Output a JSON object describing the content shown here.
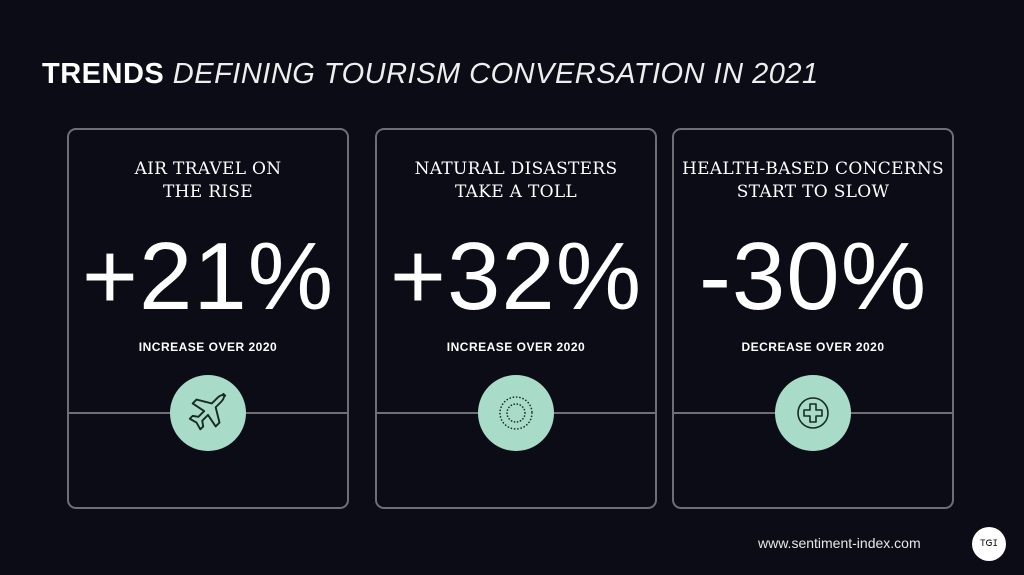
{
  "title": {
    "bold": "TRENDS",
    "italic": "DEFINING TOURISM CONVERSATION IN 2021"
  },
  "cards": [
    {
      "line1": "AIR TRAVEL ON",
      "line2": "THE RISE",
      "value": "+21%",
      "caption": "INCREASE OVER 2020",
      "icon": "airplane-icon"
    },
    {
      "line1": "NATURAL DISASTERS",
      "line2": "TAKE A TOLL",
      "value": "+32%",
      "caption": "INCREASE OVER 2020",
      "icon": "dotted-circles-icon"
    },
    {
      "line1": "HEALTH-BASED CONCERNS",
      "line2": "START TO SLOW",
      "value": "-30%",
      "caption": "DECREASE OVER 2020",
      "icon": "medical-cross-icon"
    }
  ],
  "footer": {
    "url": "www.sentiment-index.com",
    "logo": "TSI"
  },
  "colors": {
    "background": "#0b0c16",
    "accent": "#a8dcc8",
    "border": "#6e6e74"
  }
}
